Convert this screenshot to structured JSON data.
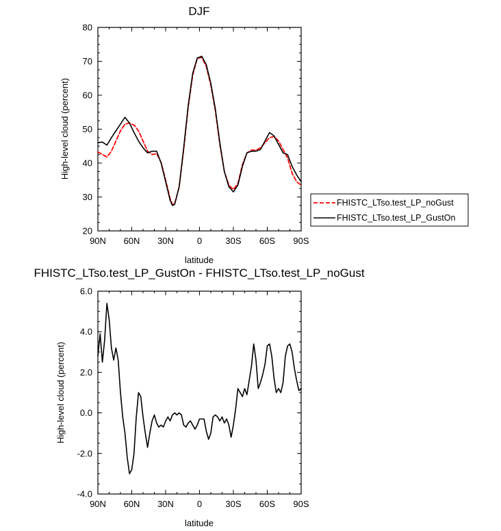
{
  "chart_data": [
    {
      "type": "line",
      "title": "DJF",
      "xlabel": "latitude",
      "ylabel": "High-level cloud (percent)",
      "xlim": [
        90,
        -90
      ],
      "ylim": [
        20,
        80
      ],
      "x_ticks": [
        90,
        60,
        30,
        0,
        -30,
        -60,
        -90
      ],
      "x_tick_labels": [
        "90N",
        "60N",
        "30N",
        "0",
        "30S",
        "60S",
        "90S"
      ],
      "y_ticks": [
        20,
        30,
        40,
        50,
        60,
        70,
        80
      ],
      "y_tick_labels": [
        "20",
        "30",
        "40",
        "50",
        "60",
        "70",
        "80"
      ],
      "grid": false,
      "legend_position": "right",
      "series": [
        {
          "name": "FHISTC_LTso.test_LP_noGust",
          "color": "#ff0000",
          "dash": "dashed",
          "x": [
            90,
            86,
            82,
            78,
            74,
            70,
            66,
            62,
            58,
            54,
            50,
            46,
            42,
            38,
            34,
            30,
            26,
            24,
            22,
            18,
            14,
            10,
            6,
            2,
            -2,
            -6,
            -10,
            -14,
            -18,
            -22,
            -26,
            -30,
            -34,
            -38,
            -42,
            -46,
            -50,
            -54,
            -58,
            -62,
            -66,
            -70,
            -74,
            -78,
            -82,
            -86,
            -90
          ],
          "values": [
            43.3,
            42.5,
            41.8,
            43.5,
            46.5,
            49.5,
            51.5,
            51.8,
            51.2,
            49.5,
            46.5,
            43.5,
            42.5,
            42.8,
            40.2,
            35.0,
            29.5,
            27.8,
            28.0,
            33.0,
            44.0,
            56.5,
            66.0,
            70.8,
            71.2,
            68.5,
            63.0,
            55.5,
            45.5,
            37.5,
            33.5,
            32.2,
            34.0,
            39.5,
            43.0,
            43.8,
            43.8,
            44.5,
            46.0,
            47.5,
            47.8,
            46.5,
            44.0,
            41.5,
            37.0,
            34.5,
            33.5
          ]
        },
        {
          "name": "FHISTC_LTso.test_LP_GustOn",
          "color": "#000000",
          "dash": "solid",
          "x": [
            90,
            86,
            82,
            78,
            74,
            70,
            66,
            62,
            58,
            54,
            50,
            46,
            42,
            38,
            34,
            30,
            26,
            24,
            22,
            18,
            14,
            10,
            6,
            2,
            -2,
            -6,
            -10,
            -14,
            -18,
            -22,
            -26,
            -30,
            -34,
            -38,
            -42,
            -46,
            -50,
            -54,
            -58,
            -62,
            -66,
            -70,
            -74,
            -78,
            -82,
            -86,
            -90
          ],
          "values": [
            46.0,
            46.2,
            45.3,
            47.5,
            49.5,
            51.5,
            53.5,
            51.8,
            49.0,
            46.5,
            44.5,
            43.0,
            43.5,
            43.5,
            40.0,
            34.5,
            29.0,
            27.5,
            27.8,
            33.0,
            44.5,
            57.0,
            66.5,
            71.0,
            71.5,
            69.0,
            63.5,
            56.0,
            46.0,
            37.5,
            33.0,
            31.5,
            33.5,
            39.0,
            43.0,
            43.5,
            43.5,
            44.0,
            46.5,
            49.0,
            48.0,
            45.5,
            43.0,
            42.5,
            39.0,
            36.5,
            34.5
          ]
        }
      ]
    },
    {
      "type": "line",
      "title": "FHISTC_LTso.test_LP_GustOn - FHISTC_LTso.test_LP_noGust",
      "xlabel": "latitude",
      "ylabel": "High-level cloud (percent)",
      "xlim": [
        90,
        -90
      ],
      "ylim": [
        -4,
        6
      ],
      "x_ticks": [
        90,
        60,
        30,
        0,
        -30,
        -60,
        -90
      ],
      "x_tick_labels": [
        "90N",
        "60N",
        "30N",
        "0",
        "30S",
        "60S",
        "90S"
      ],
      "y_ticks": [
        -4,
        -2,
        0,
        2,
        4,
        6
      ],
      "y_tick_labels": [
        "-4.0",
        "-2.0",
        "0.0",
        "2.0",
        "4.0",
        "6.0"
      ],
      "grid": false,
      "series": [
        {
          "color": "#000000",
          "dash": "solid",
          "x": [
            90,
            88,
            86,
            84,
            82,
            80,
            78,
            76,
            74,
            72,
            70,
            68,
            66,
            64,
            62,
            60,
            58,
            56,
            54,
            52,
            50,
            48,
            46,
            44,
            42,
            40,
            38,
            36,
            34,
            32,
            30,
            28,
            26,
            24,
            22,
            20,
            18,
            16,
            14,
            12,
            10,
            8,
            6,
            4,
            2,
            0,
            -2,
            -4,
            -6,
            -8,
            -10,
            -12,
            -14,
            -16,
            -18,
            -20,
            -22,
            -24,
            -26,
            -28,
            -30,
            -32,
            -34,
            -36,
            -38,
            -40,
            -42,
            -44,
            -46,
            -48,
            -50,
            -52,
            -54,
            -56,
            -58,
            -60,
            -62,
            -64,
            -66,
            -68,
            -70,
            -72,
            -74,
            -76,
            -78,
            -80,
            -82,
            -84,
            -86,
            -88,
            -90
          ],
          "values": [
            2.8,
            3.9,
            2.5,
            3.6,
            5.4,
            4.6,
            3.2,
            2.6,
            3.2,
            2.6,
            1.0,
            -0.2,
            -1.0,
            -2.2,
            -3.0,
            -2.8,
            -2.0,
            -0.2,
            1.0,
            0.8,
            -0.2,
            -1.0,
            -1.7,
            -1.0,
            -0.4,
            -0.1,
            -0.5,
            -0.7,
            -0.6,
            -0.7,
            -0.4,
            -0.2,
            -0.4,
            -0.1,
            0.0,
            -0.1,
            0.0,
            -0.1,
            -0.6,
            -0.7,
            -0.5,
            -0.4,
            -0.6,
            -0.8,
            -0.6,
            -0.3,
            -0.3,
            -0.3,
            -0.9,
            -1.3,
            -1.0,
            -0.2,
            -0.1,
            -0.2,
            -0.4,
            -0.2,
            -0.5,
            -0.3,
            -0.6,
            -1.2,
            -0.6,
            0.2,
            1.2,
            1.0,
            0.8,
            1.2,
            0.9,
            1.6,
            2.3,
            3.4,
            2.6,
            1.2,
            1.5,
            1.9,
            2.4,
            3.3,
            3.4,
            2.8,
            1.7,
            1.0,
            1.2,
            1.0,
            1.5,
            2.8,
            3.3,
            3.4,
            3.0,
            2.2,
            1.6,
            1.1,
            1.2
          ]
        }
      ]
    }
  ]
}
